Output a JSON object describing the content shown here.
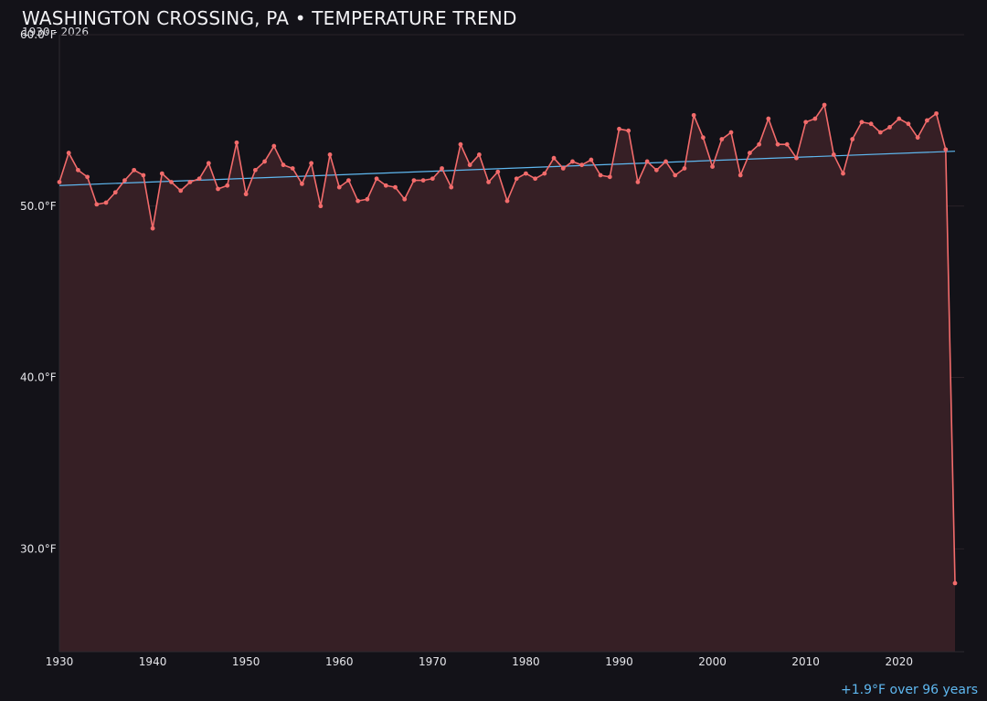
{
  "header": {
    "title": "WASHINGTON CROSSING, PA • TEMPERATURE TREND",
    "subtitle": "1930 - 2026"
  },
  "footer": {
    "trend_note": "+1.9°F over 96 years"
  },
  "colors": {
    "background": "#131218",
    "series_line": "#f26b6b",
    "area_fill": "#361f25",
    "trend_line": "#5fb8f0",
    "grid": "#2a2228"
  },
  "chart_data": {
    "type": "area",
    "title": "WASHINGTON CROSSING, PA • TEMPERATURE TREND",
    "subtitle": "1930 - 2026",
    "xlabel": "",
    "ylabel": "",
    "xlim": [
      1930,
      2026
    ],
    "ylim": [
      24,
      60
    ],
    "x_ticks": [
      1930,
      1940,
      1950,
      1960,
      1970,
      1980,
      1990,
      2000,
      2010,
      2020
    ],
    "y_ticks": [
      30,
      40,
      50,
      60
    ],
    "y_tick_labels": [
      "30.0°F",
      "40.0°F",
      "50.0°F",
      "60.0°F"
    ],
    "grid": true,
    "series": [
      {
        "x": [
          1930,
          1931,
          1932,
          1933,
          1934,
          1935,
          1936,
          1937,
          1938,
          1939,
          1940,
          1941,
          1942,
          1943,
          1944,
          1945,
          1946,
          1947,
          1948,
          1949,
          1950,
          1951,
          1952,
          1953,
          1954,
          1955,
          1956,
          1957,
          1958,
          1959,
          1960,
          1961,
          1962,
          1963,
          1964,
          1965,
          1966,
          1967,
          1968,
          1969,
          1970,
          1971,
          1972,
          1973,
          1974,
          1975,
          1976,
          1977,
          1978,
          1979,
          1980,
          1981,
          1982,
          1983,
          1984,
          1985,
          1986,
          1987,
          1988,
          1989,
          1990,
          1991,
          1992,
          1993,
          1994,
          1995,
          1996,
          1997,
          1998,
          1999,
          2000,
          2001,
          2002,
          2003,
          2004,
          2005,
          2006,
          2007,
          2008,
          2009,
          2010,
          2011,
          2012,
          2013,
          2014,
          2015,
          2016,
          2017,
          2018,
          2019,
          2020,
          2021,
          2022,
          2023,
          2024,
          2025,
          2026
        ],
        "values": [
          51.4,
          53.1,
          52.1,
          51.7,
          50.1,
          50.2,
          50.8,
          51.5,
          52.1,
          51.8,
          48.7,
          51.9,
          51.4,
          50.9,
          51.4,
          51.6,
          52.5,
          51.0,
          51.2,
          53.7,
          50.7,
          52.1,
          52.6,
          53.5,
          52.4,
          52.2,
          51.3,
          52.5,
          50.0,
          53.0,
          51.1,
          51.5,
          50.3,
          50.4,
          51.6,
          51.2,
          51.1,
          50.4,
          51.5,
          51.5,
          51.6,
          52.2,
          51.1,
          53.6,
          52.4,
          53.0,
          51.4,
          52.0,
          50.3,
          51.6,
          51.9,
          51.6,
          51.9,
          52.8,
          52.2,
          52.6,
          52.4,
          52.7,
          51.8,
          51.7,
          54.5,
          54.4,
          51.4,
          52.6,
          52.1,
          52.6,
          51.8,
          52.2,
          55.3,
          54.0,
          52.3,
          53.9,
          54.3,
          51.8,
          53.1,
          53.6,
          55.1,
          53.6,
          53.6,
          52.8,
          54.9,
          55.1,
          55.9,
          53.0,
          51.9,
          53.9,
          54.9,
          54.8,
          54.3,
          54.6,
          55.1,
          54.8,
          54.0,
          55.0,
          55.4,
          53.3,
          28.0
        ]
      }
    ],
    "trend": {
      "start": [
        1930,
        51.2
      ],
      "end": [
        2026,
        53.2
      ]
    }
  }
}
